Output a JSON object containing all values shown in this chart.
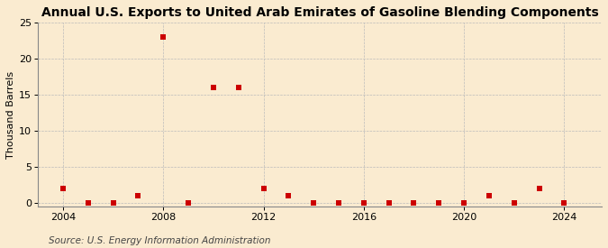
{
  "title": "Annual U.S. Exports to United Arab Emirates of Gasoline Blending Components",
  "ylabel": "Thousand Barrels",
  "source": "Source: U.S. Energy Information Administration",
  "years": [
    2004,
    2005,
    2006,
    2007,
    2008,
    2009,
    2010,
    2011,
    2012,
    2013,
    2014,
    2015,
    2016,
    2017,
    2018,
    2019,
    2020,
    2021,
    2022,
    2023,
    2024
  ],
  "values": [
    2,
    0,
    0,
    1,
    23,
    0,
    16,
    16,
    2,
    1,
    0,
    0,
    0,
    0,
    0,
    0,
    0,
    1,
    0,
    2,
    0
  ],
  "xlim": [
    2003.0,
    2025.5
  ],
  "ylim": [
    -0.5,
    25
  ],
  "yticks": [
    0,
    5,
    10,
    15,
    20,
    25
  ],
  "xticks": [
    2004,
    2008,
    2012,
    2016,
    2020,
    2024
  ],
  "marker_color": "#cc0000",
  "marker_size": 18,
  "bg_color": "#faebd0",
  "grid_color": "#bbbbbb",
  "title_fontsize": 10,
  "label_fontsize": 8,
  "tick_fontsize": 8,
  "source_fontsize": 7.5
}
